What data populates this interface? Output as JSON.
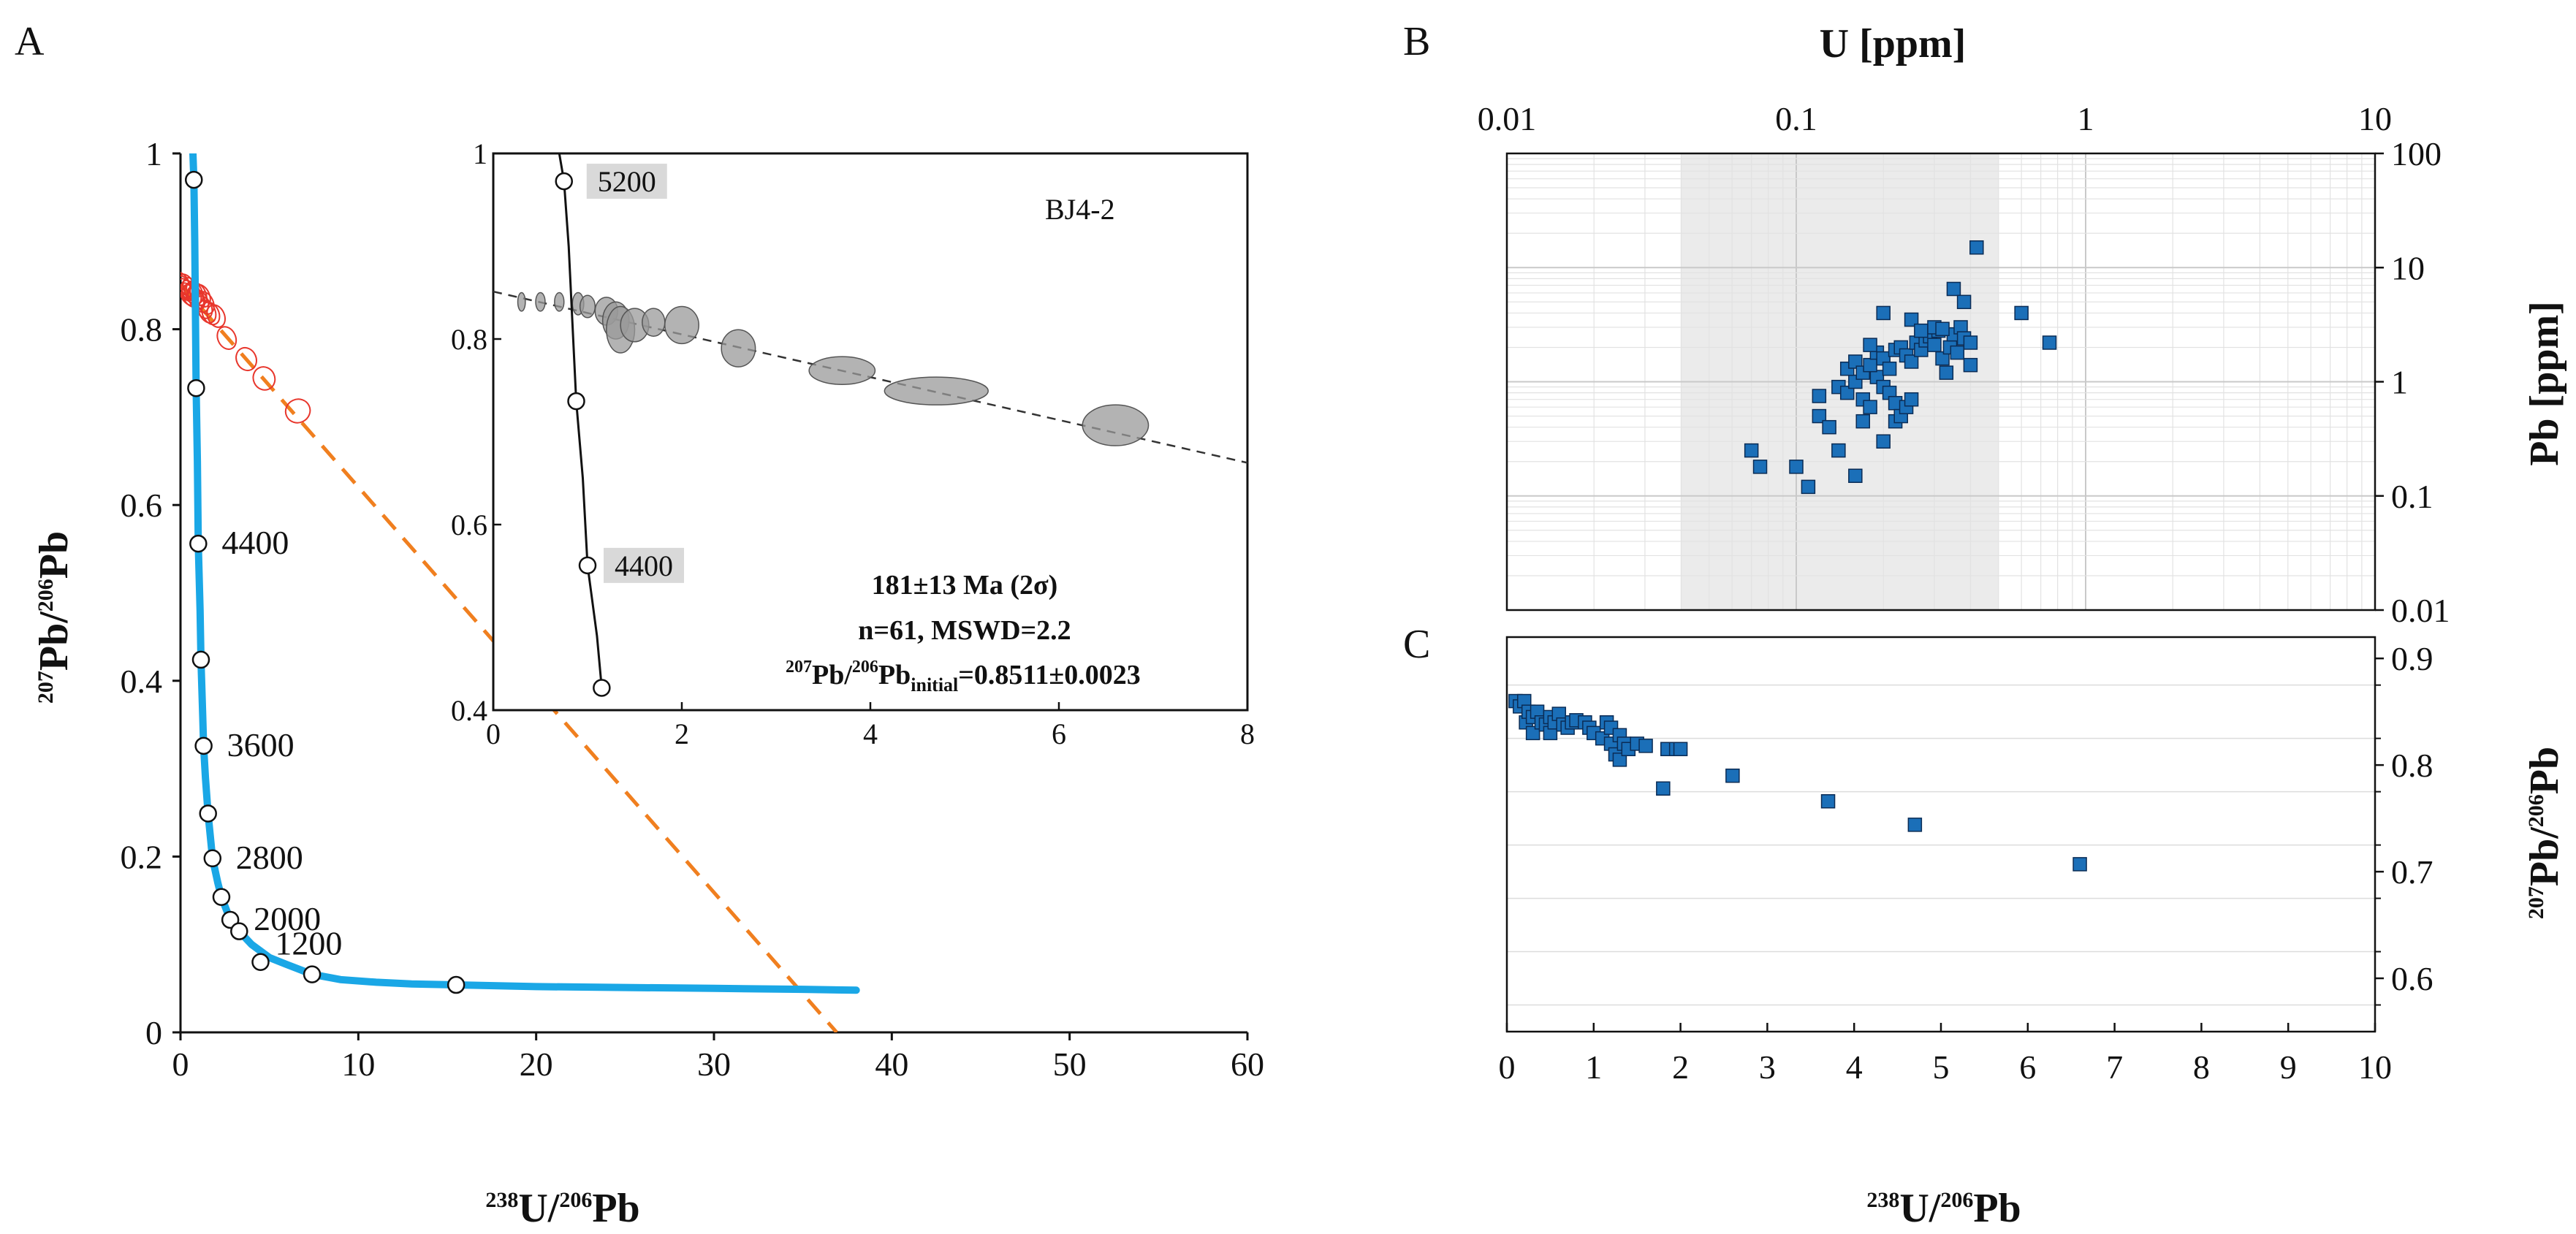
{
  "figure": {
    "panels": [
      "A",
      "B",
      "C"
    ]
  },
  "chart_data": [
    {
      "panel": "A",
      "type": "scatter",
      "title": "",
      "xlabel": "238U/206Pb",
      "ylabel": "207Pb/206Pb",
      "xlim": [
        0,
        60
      ],
      "ylim": [
        0,
        1
      ],
      "xticks": [
        "0",
        "10",
        "20",
        "30",
        "40",
        "50",
        "60"
      ],
      "yticks": [
        "0",
        "0.2",
        "0.4",
        "0.6",
        "0.8",
        "1"
      ],
      "concordia": {
        "color": "#1aa7e6",
        "curve": [
          [
            0.7,
            1.0
          ],
          [
            0.75,
            0.97
          ],
          [
            0.8,
            0.9
          ],
          [
            0.88,
            0.733
          ],
          [
            0.95,
            0.65
          ],
          [
            1.0,
            0.556
          ],
          [
            1.1,
            0.48
          ],
          [
            1.15,
            0.424
          ],
          [
            1.25,
            0.36
          ],
          [
            1.3,
            0.326
          ],
          [
            1.4,
            0.29
          ],
          [
            1.55,
            0.249
          ],
          [
            1.8,
            0.198
          ],
          [
            2.1,
            0.17
          ],
          [
            2.3,
            0.154
          ],
          [
            2.8,
            0.128
          ],
          [
            3.3,
            0.115
          ],
          [
            4.0,
            0.1
          ],
          [
            5.0,
            0.085
          ],
          [
            6.0,
            0.077
          ],
          [
            7.4,
            0.066
          ],
          [
            9.0,
            0.06
          ],
          [
            11.0,
            0.057
          ],
          [
            13.0,
            0.055
          ],
          [
            15.5,
            0.054
          ],
          [
            20.0,
            0.052
          ],
          [
            25.0,
            0.051
          ],
          [
            30.0,
            0.05
          ],
          [
            35.0,
            0.049
          ],
          [
            38.0,
            0.048
          ]
        ],
        "markers": [
          [
            0.75,
            0.97
          ],
          [
            0.88,
            0.733
          ],
          [
            1.0,
            0.556
          ],
          [
            1.15,
            0.424
          ],
          [
            1.3,
            0.326
          ],
          [
            1.55,
            0.249
          ],
          [
            1.8,
            0.198
          ],
          [
            2.3,
            0.154
          ],
          [
            2.8,
            0.128
          ],
          [
            3.3,
            0.115
          ],
          [
            4.5,
            0.08
          ],
          [
            7.4,
            0.066
          ],
          [
            15.5,
            0.054
          ]
        ],
        "age_labels": [
          {
            "text": "4400",
            "x": 1.0,
            "y": 0.556
          },
          {
            "text": "3600",
            "x": 1.3,
            "y": 0.326
          },
          {
            "text": "2800",
            "x": 1.8,
            "y": 0.198
          },
          {
            "text": "2000",
            "x": 2.8,
            "y": 0.128
          },
          {
            "text": "1200",
            "x": 4.0,
            "y": 0.1
          }
        ]
      },
      "regression_line": {
        "color": "#f07f1f",
        "from": [
          0,
          0.8511
        ],
        "to": [
          36.9,
          0
        ]
      },
      "data_ellipses": [
        [
          0.1,
          0.852
        ],
        [
          0.2,
          0.848
        ],
        [
          0.3,
          0.845
        ],
        [
          0.35,
          0.85
        ],
        [
          0.4,
          0.84
        ],
        [
          0.5,
          0.843
        ],
        [
          0.55,
          0.838
        ],
        [
          0.6,
          0.846
        ],
        [
          0.7,
          0.84
        ],
        [
          0.8,
          0.842
        ],
        [
          0.85,
          0.836
        ],
        [
          0.9,
          0.835
        ],
        [
          1.0,
          0.84
        ],
        [
          1.1,
          0.832
        ],
        [
          1.2,
          0.838
        ],
        [
          1.3,
          0.825
        ],
        [
          1.4,
          0.83
        ],
        [
          1.5,
          0.82
        ],
        [
          1.7,
          0.818
        ],
        [
          2.0,
          0.815
        ],
        [
          2.6,
          0.79
        ],
        [
          3.7,
          0.766
        ],
        [
          4.7,
          0.744
        ],
        [
          6.6,
          0.707
        ]
      ],
      "inset": {
        "label": "BJ4-2",
        "xlim": [
          0,
          8
        ],
        "ylim": [
          0.4,
          1
        ],
        "xticks": [
          "0",
          "2",
          "4",
          "6",
          "8"
        ],
        "yticks": [
          "0.4",
          "0.6",
          "0.8",
          "1"
        ],
        "age_labels": [
          {
            "text": "5200",
            "x": 0.82,
            "y": 0.97
          },
          {
            "text": "4400",
            "x": 1.0,
            "y": 0.556
          }
        ],
        "stats": {
          "age": "181±13  Ma (2σ)",
          "n_mswd": "n=61, MSWD=2.2",
          "initial_prefix": "207",
          "initial_mid": "Pb/",
          "initial_mid_sup": "206",
          "initial_pb": "Pb",
          "initial_sub": "initial",
          "initial_value": "=0.8511±0.0023"
        },
        "ellipses": [
          [
            0.3,
            0.84,
            0.04,
            0.01
          ],
          [
            0.5,
            0.84,
            0.05,
            0.01
          ],
          [
            0.7,
            0.84,
            0.05,
            0.01
          ],
          [
            0.9,
            0.838,
            0.06,
            0.012
          ],
          [
            1.0,
            0.835,
            0.08,
            0.012
          ],
          [
            1.2,
            0.83,
            0.12,
            0.015
          ],
          [
            1.3,
            0.82,
            0.14,
            0.02
          ],
          [
            1.35,
            0.81,
            0.15,
            0.025
          ],
          [
            1.5,
            0.815,
            0.15,
            0.018
          ],
          [
            1.7,
            0.818,
            0.12,
            0.015
          ],
          [
            2.0,
            0.815,
            0.18,
            0.02
          ],
          [
            2.6,
            0.79,
            0.18,
            0.02
          ],
          [
            3.7,
            0.766,
            0.35,
            0.015
          ],
          [
            4.7,
            0.744,
            0.55,
            0.015
          ],
          [
            6.6,
            0.707,
            0.35,
            0.022
          ]
        ]
      }
    },
    {
      "panel": "B",
      "type": "scatter",
      "title": "",
      "xlabel": "U [ppm]",
      "ylabel": "Pb [ppm]",
      "x_scale": "log",
      "y_scale": "log",
      "xlim": [
        0.01,
        10
      ],
      "ylim": [
        0.01,
        100
      ],
      "xticks": [
        "0.01",
        "0.1",
        "1",
        "10"
      ],
      "yticks": [
        "100",
        "10",
        "1",
        "0.1",
        "0.01"
      ],
      "shaded_band_x": [
        0.04,
        0.5
      ],
      "marker_color": "#1b6fb8",
      "points": [
        [
          0.07,
          0.25
        ],
        [
          0.075,
          0.18
        ],
        [
          0.1,
          0.18
        ],
        [
          0.11,
          0.12
        ],
        [
          0.12,
          0.5
        ],
        [
          0.13,
          0.4
        ],
        [
          0.14,
          0.25
        ],
        [
          0.16,
          0.15
        ],
        [
          0.17,
          0.45
        ],
        [
          0.2,
          0.3
        ],
        [
          0.22,
          0.45
        ],
        [
          0.12,
          0.75
        ],
        [
          0.14,
          0.9
        ],
        [
          0.15,
          0.8
        ],
        [
          0.16,
          1.0
        ],
        [
          0.17,
          0.7
        ],
        [
          0.18,
          0.6
        ],
        [
          0.19,
          1.1
        ],
        [
          0.2,
          0.9
        ],
        [
          0.21,
          0.8
        ],
        [
          0.22,
          0.65
        ],
        [
          0.23,
          0.5
        ],
        [
          0.24,
          0.6
        ],
        [
          0.25,
          0.7
        ],
        [
          0.15,
          1.3
        ],
        [
          0.16,
          1.5
        ],
        [
          0.17,
          1.2
        ],
        [
          0.18,
          1.4
        ],
        [
          0.19,
          1.8
        ],
        [
          0.2,
          1.6
        ],
        [
          0.21,
          1.3
        ],
        [
          0.22,
          1.9
        ],
        [
          0.23,
          2.0
        ],
        [
          0.24,
          1.7
        ],
        [
          0.25,
          1.5
        ],
        [
          0.26,
          2.2
        ],
        [
          0.27,
          1.9
        ],
        [
          0.28,
          2.3
        ],
        [
          0.29,
          2.5
        ],
        [
          0.3,
          2.1
        ],
        [
          0.31,
          2.8
        ],
        [
          0.32,
          1.6
        ],
        [
          0.33,
          1.2
        ],
        [
          0.34,
          2.0
        ],
        [
          0.35,
          2.6
        ],
        [
          0.36,
          1.8
        ],
        [
          0.37,
          3.0
        ],
        [
          0.38,
          2.4
        ],
        [
          0.4,
          1.4
        ],
        [
          0.2,
          4.0
        ],
        [
          0.25,
          3.5
        ],
        [
          0.3,
          3.0
        ],
        [
          0.35,
          6.5
        ],
        [
          0.38,
          5.0
        ],
        [
          0.42,
          15.0
        ],
        [
          0.6,
          4.0
        ],
        [
          0.75,
          2.2
        ],
        [
          0.18,
          2.1
        ],
        [
          0.27,
          2.8
        ],
        [
          0.32,
          2.9
        ],
        [
          0.4,
          2.2
        ]
      ]
    },
    {
      "panel": "C",
      "type": "scatter",
      "title": "",
      "xlabel": "238U/206Pb",
      "ylabel": "207Pb/206Pb",
      "xlim": [
        0,
        10
      ],
      "ylim": [
        0.55,
        0.92
      ],
      "xticks": [
        "0",
        "1",
        "2",
        "3",
        "4",
        "5",
        "6",
        "7",
        "8",
        "9",
        "10"
      ],
      "yticks": [
        "0.9",
        "0.8",
        "0.7",
        "0.6"
      ],
      "marker_color": "#1b6fb8",
      "points": [
        [
          0.1,
          0.86
        ],
        [
          0.15,
          0.855
        ],
        [
          0.2,
          0.86
        ],
        [
          0.22,
          0.84
        ],
        [
          0.25,
          0.85
        ],
        [
          0.3,
          0.83
        ],
        [
          0.3,
          0.845
        ],
        [
          0.35,
          0.85
        ],
        [
          0.4,
          0.84
        ],
        [
          0.45,
          0.838
        ],
        [
          0.5,
          0.845
        ],
        [
          0.5,
          0.83
        ],
        [
          0.55,
          0.84
        ],
        [
          0.6,
          0.848
        ],
        [
          0.65,
          0.838
        ],
        [
          0.7,
          0.835
        ],
        [
          0.75,
          0.84
        ],
        [
          0.8,
          0.842
        ],
        [
          0.9,
          0.84
        ],
        [
          0.95,
          0.835
        ],
        [
          1.0,
          0.83
        ],
        [
          1.1,
          0.825
        ],
        [
          1.15,
          0.84
        ],
        [
          1.2,
          0.82
        ],
        [
          1.2,
          0.835
        ],
        [
          1.25,
          0.81
        ],
        [
          1.3,
          0.828
        ],
        [
          1.3,
          0.805
        ],
        [
          1.35,
          0.82
        ],
        [
          1.4,
          0.815
        ],
        [
          1.5,
          0.82
        ],
        [
          1.6,
          0.818
        ],
        [
          1.8,
          0.778
        ],
        [
          1.85,
          0.815
        ],
        [
          1.95,
          0.815
        ],
        [
          2.0,
          0.815
        ],
        [
          2.6,
          0.79
        ],
        [
          3.7,
          0.766
        ],
        [
          4.7,
          0.744
        ],
        [
          6.6,
          0.707
        ]
      ]
    }
  ]
}
